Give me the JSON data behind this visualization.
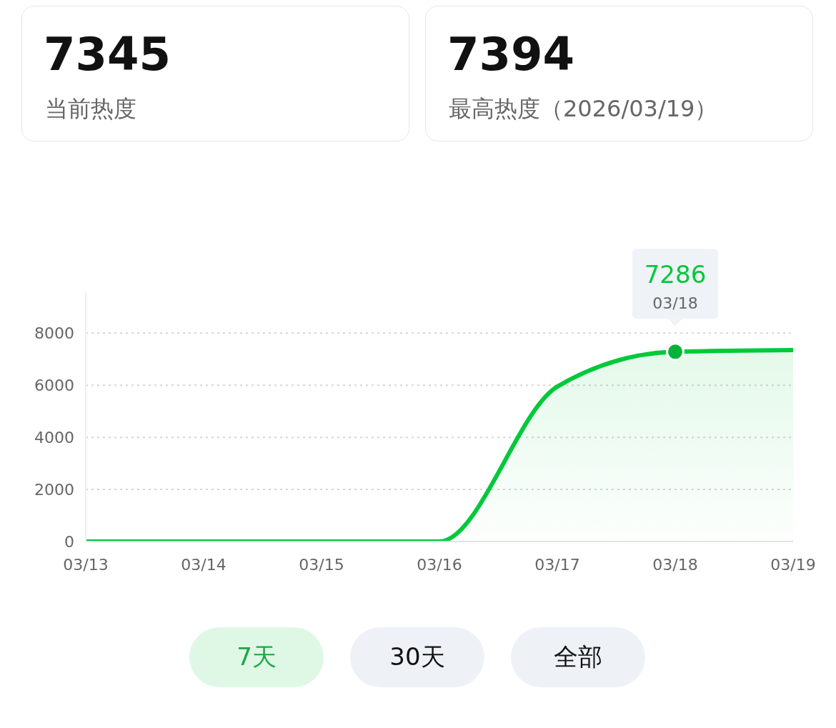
{
  "chart_data": {
    "type": "area",
    "categories": [
      "03/13",
      "03/14",
      "03/15",
      "03/16",
      "03/17",
      "03/18",
      "03/19"
    ],
    "series": [
      {
        "color": "#00c93a",
        "values": [
          0,
          0,
          0,
          0,
          5950,
          7286,
          7350
        ]
      }
    ],
    "ylim": [
      0,
      9600
    ],
    "yticks": [
      0,
      2000,
      4000,
      6000,
      8000
    ],
    "grid": "y",
    "legend": false,
    "marker": "none",
    "line_style": "solid",
    "annotations": [
      "7345",
      "当前热度",
      "7394",
      "最高热度（2026/03/19）",
      "7天",
      "30天",
      "全部",
      {
        "text": "7286",
        "x": "03/18",
        "y": 7286
      },
      "03/18"
    ]
  }
}
